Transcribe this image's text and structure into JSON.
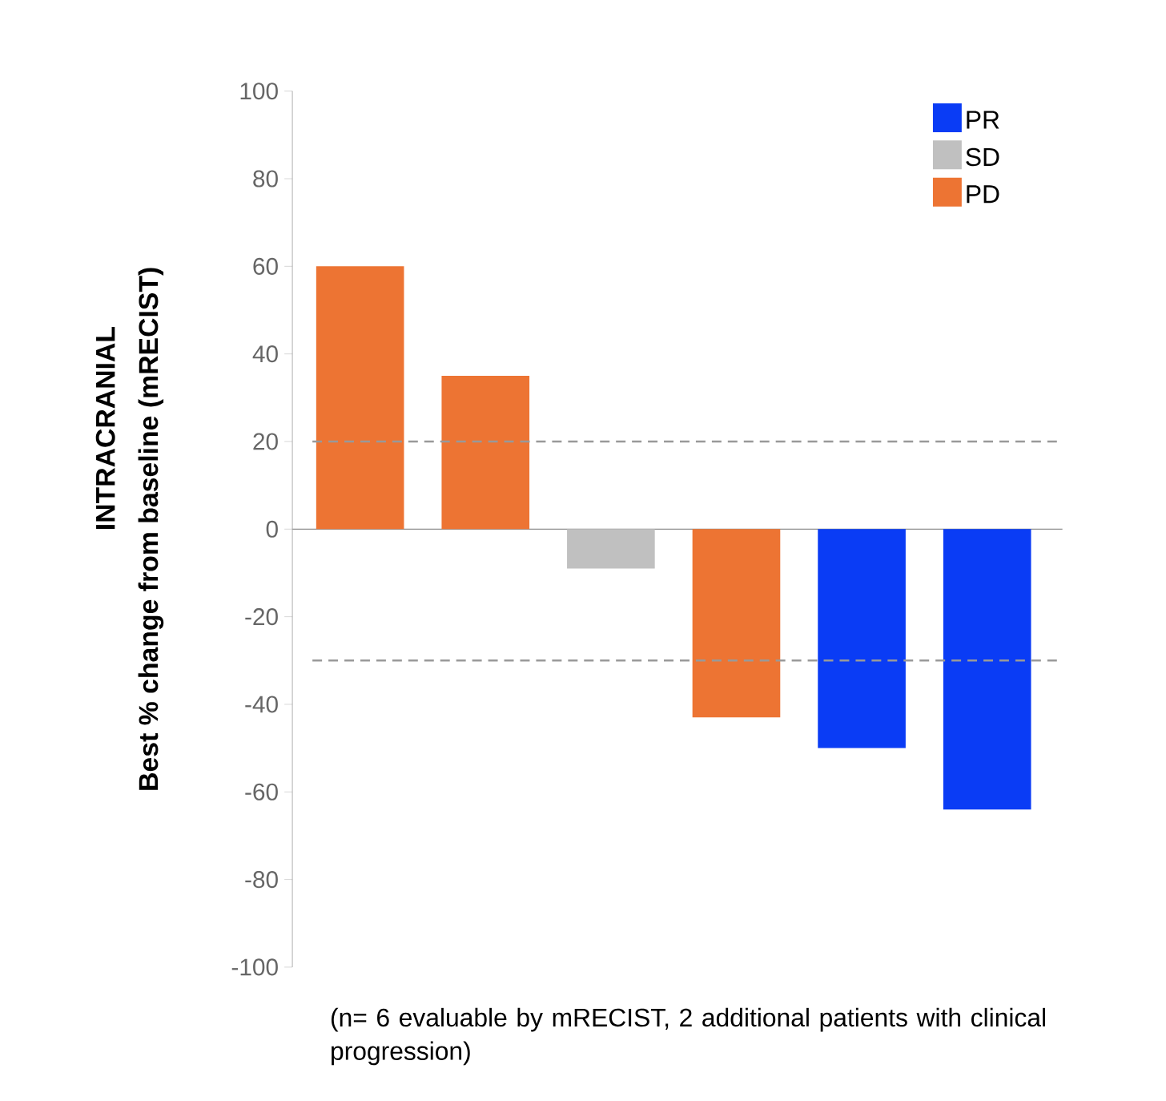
{
  "chart_data": {
    "type": "bar",
    "ylabel": "Best % change from baseline (mRECIST)",
    "categories": [
      null,
      null,
      null,
      null,
      null,
      null
    ],
    "series": [
      {
        "name": "PR",
        "color": "#0a3cf5",
        "values": [
          null,
          null,
          null,
          null,
          -50,
          -64
        ]
      },
      {
        "name": "SD",
        "color": "#c0c0c0",
        "values": [
          null,
          null,
          -9,
          null,
          null,
          null
        ]
      },
      {
        "name": "PD",
        "color": "#ed7433",
        "values": [
          60,
          35,
          null,
          -43,
          null,
          null
        ]
      }
    ],
    "ylim": [
      -100,
      100
    ],
    "yticks": [
      -100,
      -80,
      -60,
      -40,
      -20,
      0,
      20,
      40,
      60,
      80,
      100
    ],
    "ref_lines": [
      {
        "axis": "y",
        "value": 20,
        "color": "#999999",
        "line_style": "dashed"
      },
      {
        "axis": "y",
        "value": -30,
        "color": "#999999",
        "line_style": "dashed"
      }
    ],
    "legend": "top right",
    "annotations": [
      "INTRACRANIAL",
      "(n= 6 evaluable by mRECIST, 2 additional patients with clinical progression)"
    ]
  }
}
